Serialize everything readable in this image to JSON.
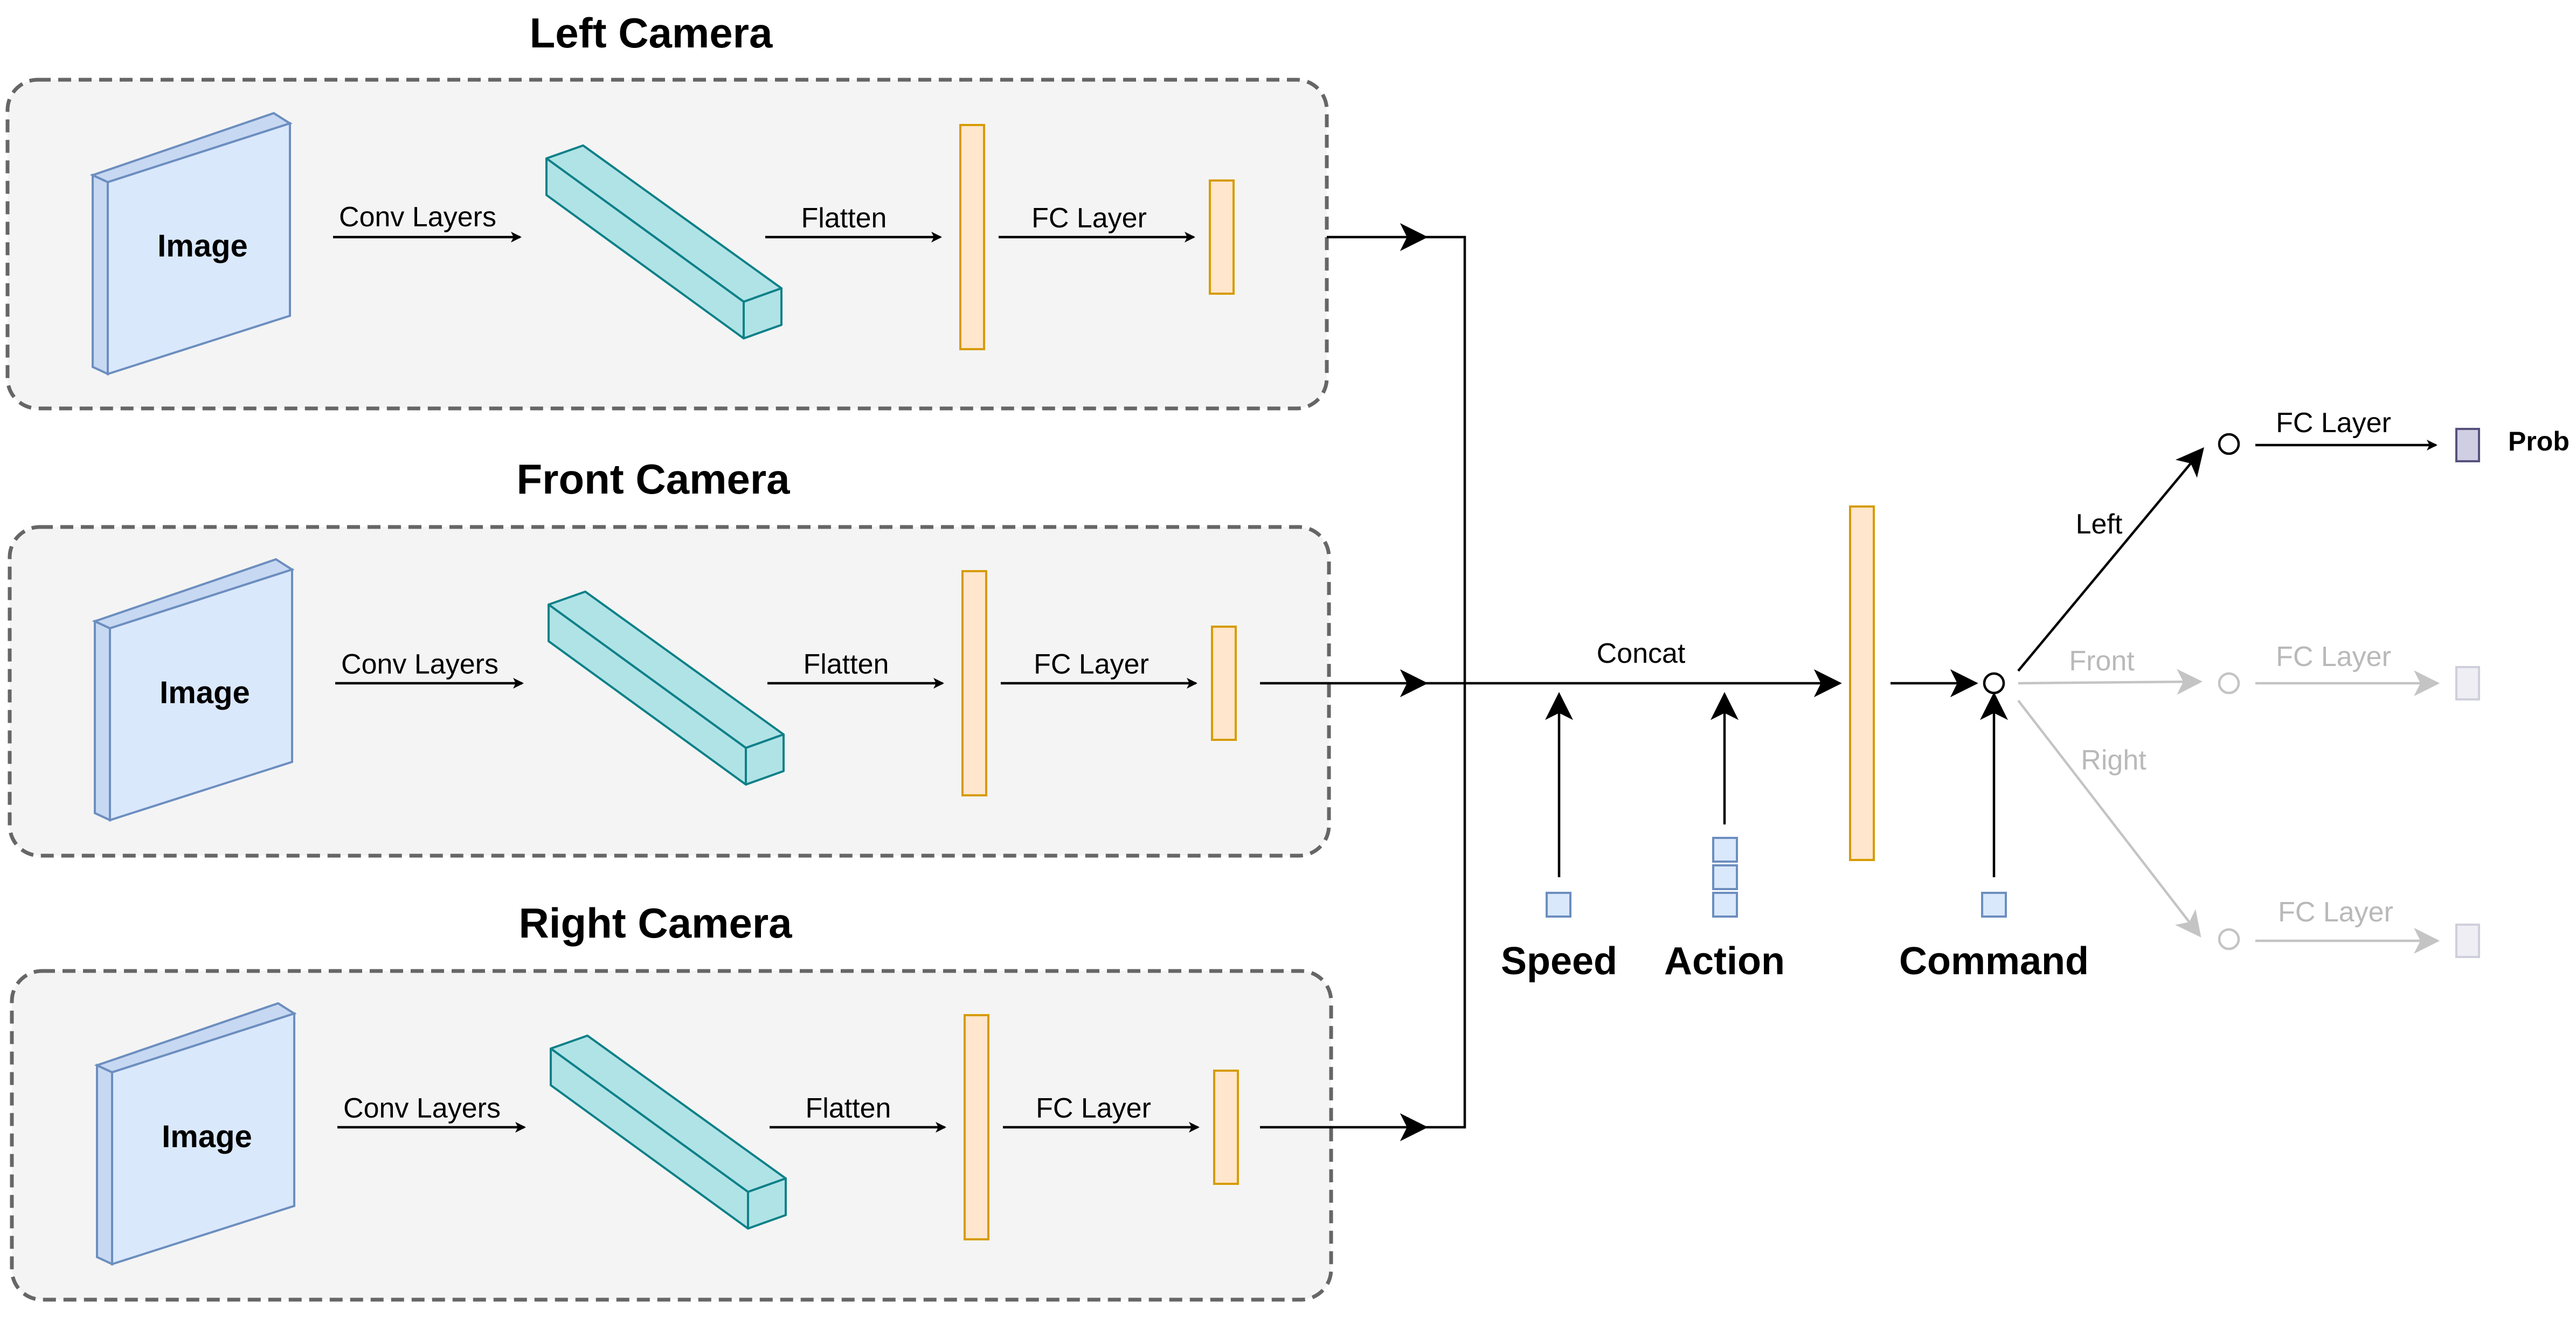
{
  "cameras": [
    {
      "title": "Left Camera",
      "image_label": "Image",
      "conv_label": "Conv Layers",
      "flatten_label": "Flatten",
      "fc_label": "FC Layer"
    },
    {
      "title": "Front Camera",
      "image_label": "Image",
      "conv_label": "Conv Layers",
      "flatten_label": "Flatten",
      "fc_label": "FC Layer"
    },
    {
      "title": "Right Camera",
      "image_label": "Image",
      "conv_label": "Conv Layers",
      "flatten_label": "Flatten",
      "fc_label": "FC Layer"
    }
  ],
  "merge": {
    "concat_label": "Concat"
  },
  "inputs": {
    "speed": "Speed",
    "action": "Action",
    "command": "Command"
  },
  "branches": {
    "left": {
      "label": "Left",
      "fc_label": "FC Layer",
      "output_label": "Prob",
      "active": true
    },
    "front": {
      "label": "Front",
      "fc_label": "FC Layer",
      "active": false
    },
    "right": {
      "label": "Right",
      "fc_label": "FC Layer",
      "active": false
    }
  },
  "colors": {
    "image": "#dae8fc",
    "conv": "#b0e3e6",
    "vector": "#ffe6cc",
    "output": "#d0cee2",
    "faded": "#c4c4c4"
  }
}
